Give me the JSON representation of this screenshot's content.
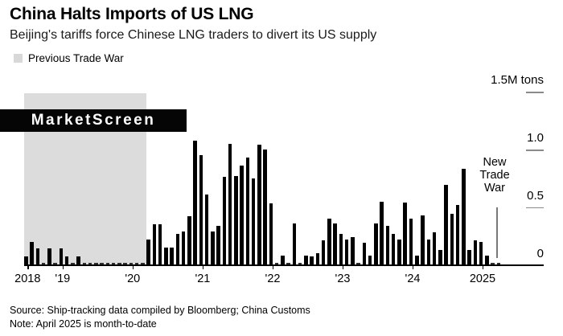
{
  "title": "China Halts Imports of US LNG",
  "subtitle": "Beijing's tariffs force Chinese LNG traders to divert its US supply",
  "legend": {
    "label": "Previous Trade War",
    "swatch_color": "#d8d8d8"
  },
  "watermark": "MarketScreen",
  "annotation": {
    "lines": [
      "New",
      "Trade",
      "War"
    ]
  },
  "source": "Source: Ship-tracking data compiled by Bloomberg; China Customs",
  "note": "Note: April 2025 is month-to-date",
  "chart_data": {
    "type": "bar",
    "title": "China monthly imports of US LNG",
    "unit": "M tons",
    "ylim": [
      0,
      1.5
    ],
    "y_ticks": [
      {
        "value": 1.5,
        "label": "1.5M tons"
      },
      {
        "value": 1.0,
        "label": "1.0"
      },
      {
        "value": 0.5,
        "label": "0.5"
      },
      {
        "value": 0.0,
        "label": "0"
      }
    ],
    "x_tick_labels": [
      "2018",
      "'19",
      "'20",
      "'21",
      "'22",
      "'23",
      "'24",
      "2025"
    ],
    "bar_color": "#000000",
    "shaded_region": {
      "label": "Previous Trade War",
      "from": "2018-07",
      "to": "2020-03",
      "color": "#dcdcdc"
    },
    "x": [
      "2018-07",
      "2018-08",
      "2018-09",
      "2018-10",
      "2018-11",
      "2018-12",
      "2019-01",
      "2019-02",
      "2019-03",
      "2019-04",
      "2019-05",
      "2019-06",
      "2019-07",
      "2019-08",
      "2019-09",
      "2019-10",
      "2019-11",
      "2019-12",
      "2020-01",
      "2020-02",
      "2020-03",
      "2020-04",
      "2020-05",
      "2020-06",
      "2020-07",
      "2020-08",
      "2020-09",
      "2020-10",
      "2020-11",
      "2020-12",
      "2021-01",
      "2021-02",
      "2021-03",
      "2021-04",
      "2021-05",
      "2021-06",
      "2021-07",
      "2021-08",
      "2021-09",
      "2021-10",
      "2021-11",
      "2021-12",
      "2022-01",
      "2022-02",
      "2022-03",
      "2022-04",
      "2022-05",
      "2022-06",
      "2022-07",
      "2022-08",
      "2022-09",
      "2022-10",
      "2022-11",
      "2022-12",
      "2023-01",
      "2023-02",
      "2023-03",
      "2023-04",
      "2023-05",
      "2023-06",
      "2023-07",
      "2023-08",
      "2023-09",
      "2023-10",
      "2023-11",
      "2023-12",
      "2024-01",
      "2024-02",
      "2024-03",
      "2024-04",
      "2024-05",
      "2024-06",
      "2024-07",
      "2024-08",
      "2024-09",
      "2024-10",
      "2024-11",
      "2024-12",
      "2025-01",
      "2025-02",
      "2025-03",
      "2025-04"
    ],
    "values": [
      0.07,
      0.2,
      0.14,
      0,
      0.14,
      0,
      0.14,
      0.07,
      0,
      0.07,
      0,
      0,
      0,
      0,
      0,
      0,
      0,
      0,
      0,
      0,
      0,
      0.22,
      0.35,
      0.35,
      0.15,
      0.15,
      0.27,
      0.29,
      0.42,
      1.08,
      0.95,
      0.61,
      0.29,
      0.34,
      0.76,
      1.05,
      0.77,
      0.86,
      0.93,
      0.75,
      1.04,
      1.0,
      0.53,
      0,
      0.08,
      0,
      0.36,
      0,
      0.08,
      0.07,
      0.1,
      0.21,
      0.4,
      0.36,
      0.27,
      0.22,
      0.24,
      0,
      0.19,
      0.08,
      0.36,
      0.55,
      0.34,
      0.27,
      0.22,
      0.54,
      0.4,
      0.08,
      0.43,
      0.22,
      0.28,
      0.13,
      0.69,
      0.44,
      0.52,
      0.83,
      0.13,
      0.21,
      0.2,
      0.08,
      0,
      0
    ]
  }
}
